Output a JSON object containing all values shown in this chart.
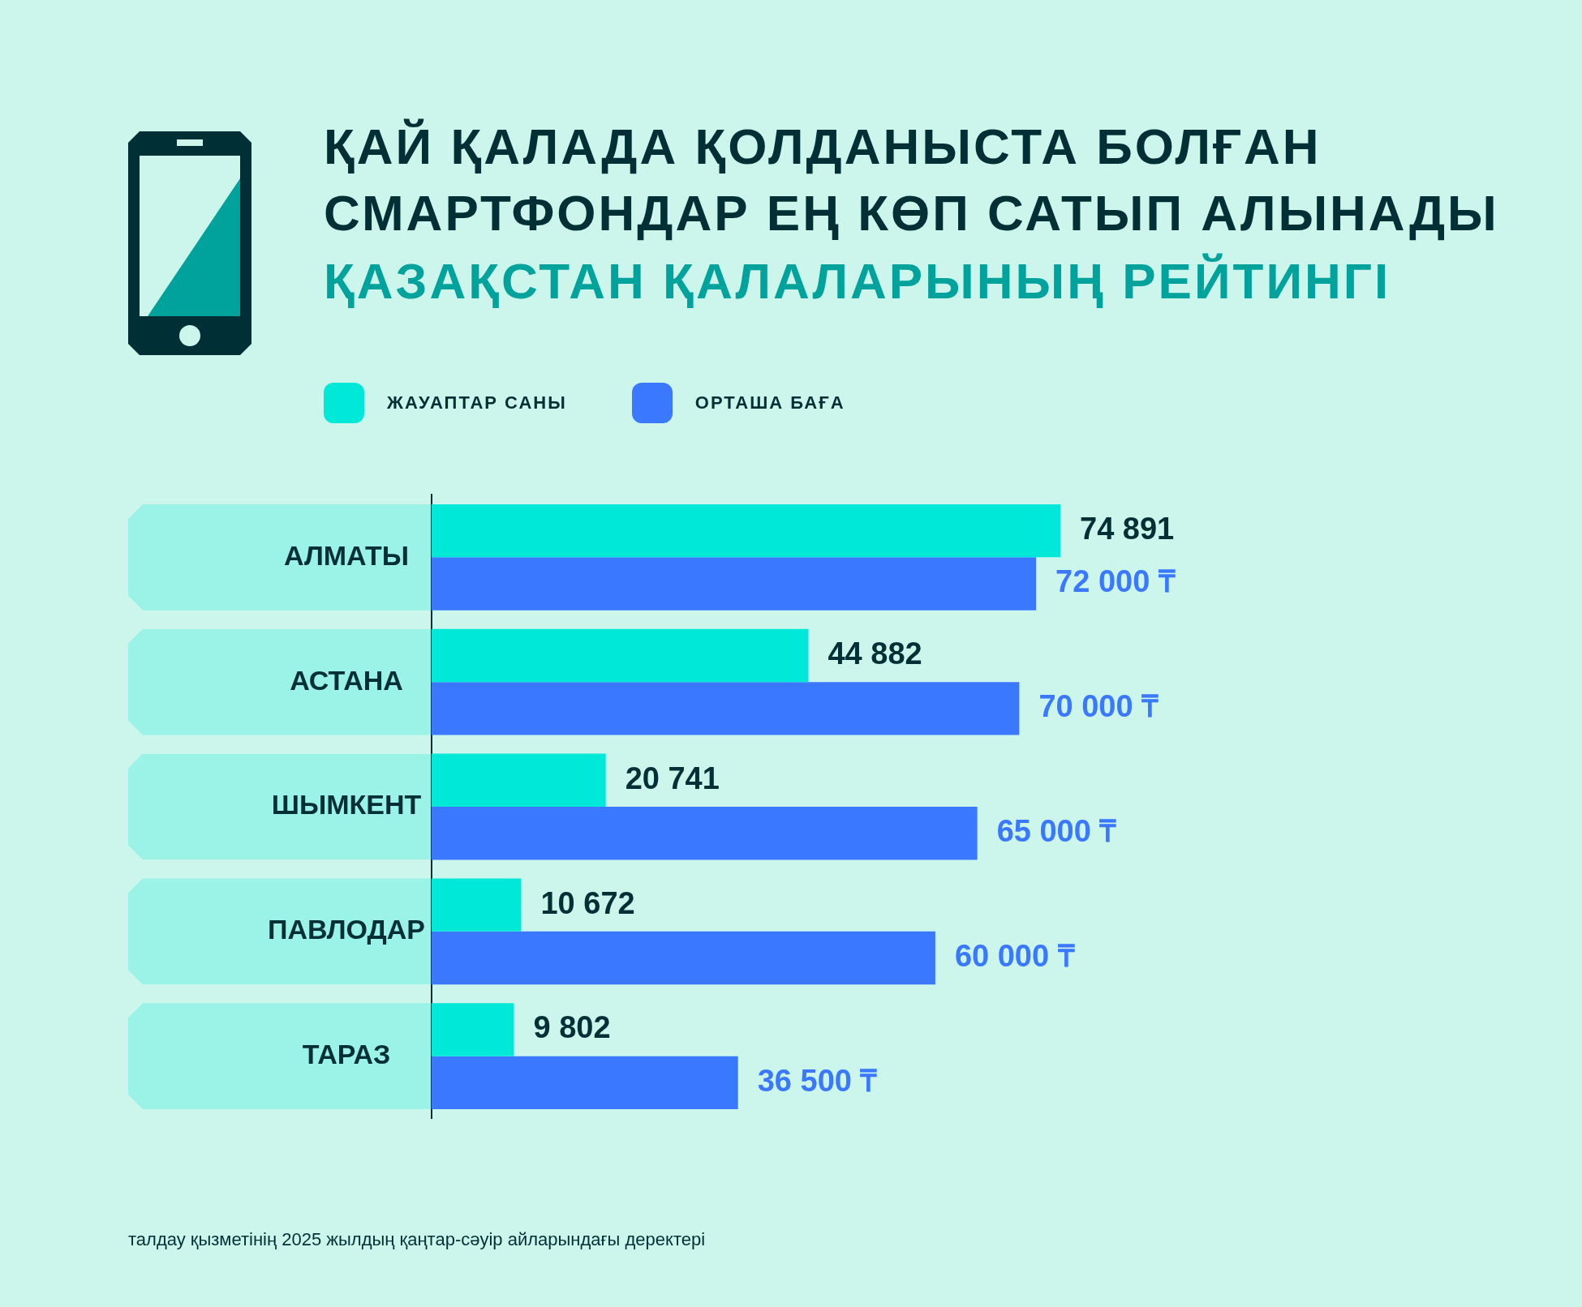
{
  "chart_data": {
    "type": "bar",
    "orientation": "horizontal",
    "title": "ҚАЙ ҚАЛАДА ҚОЛДАНЫСТА БОЛҒАН СМАРТФОНДАР ЕҢ КӨП САТЫП АЛЫНАДЫ",
    "subtitle": "ҚАЗАҚСТАН ҚАЛАЛАРЫНЫҢ РЕЙТИНГІ",
    "categories": [
      "АЛМАТЫ",
      "АСТАНА",
      "ШЫМКЕНТ",
      "ПАВЛОДАР",
      "ТАРАЗ"
    ],
    "series": [
      {
        "name": "ЖАУАПТАР САНЫ",
        "color": "#00e8d8",
        "values": [
          74891,
          44882,
          20741,
          10672,
          9802
        ],
        "value_labels": [
          "74 891",
          "44 882",
          "20 741",
          "10 672",
          "9 802"
        ]
      },
      {
        "name": "ОРТАША БАҒА",
        "color": "#3a78ff",
        "values": [
          72000,
          70000,
          65000,
          60000,
          36500
        ],
        "value_labels": [
          "72 000 ₸",
          "70 000 ₸",
          "65 000 ₸",
          "60 000 ₸",
          "36 500 ₸"
        ]
      }
    ],
    "legend": "top left",
    "annotations": [
      "талдау қызметінің 2025 жылдың қаңтар-сәуір айларындағы деректері"
    ]
  }
}
